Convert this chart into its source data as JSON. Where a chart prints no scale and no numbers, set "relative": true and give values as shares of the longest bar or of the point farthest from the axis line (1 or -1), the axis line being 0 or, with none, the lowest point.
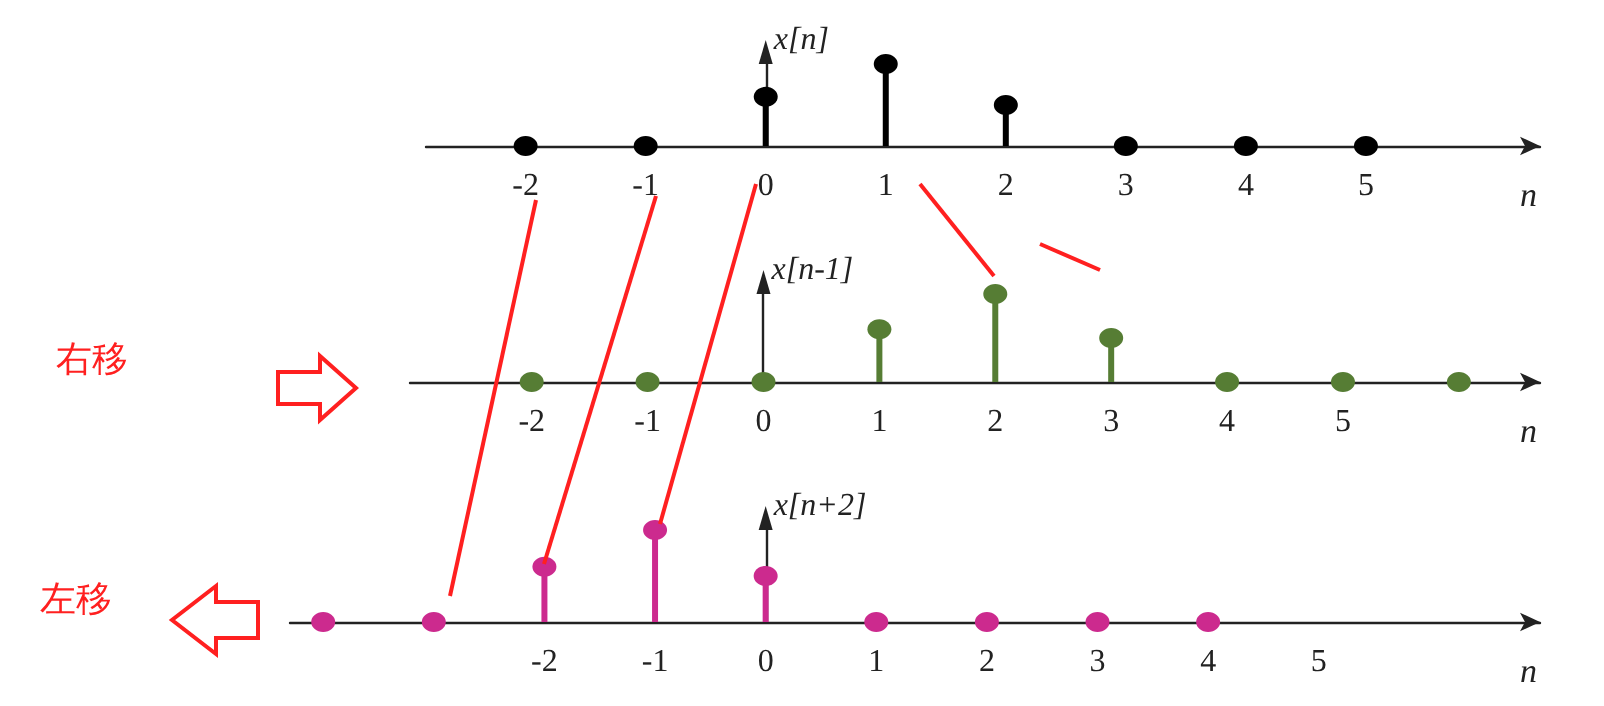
{
  "chart_data": [
    {
      "type": "lollipop",
      "relative": true,
      "color": "#000000",
      "marker": "circle",
      "ylabel": "x[n]",
      "xlabel": "n",
      "x": [
        -2,
        -1,
        0,
        1,
        2,
        3,
        4,
        5
      ],
      "values": [
        0,
        0,
        0.6,
        1,
        0.5,
        0,
        0,
        0
      ],
      "xlim": [
        -2.83,
        6.45
      ],
      "xticks": [
        -2,
        -1,
        0,
        1,
        2,
        3,
        4,
        5
      ]
    },
    {
      "type": "lollipop",
      "relative": true,
      "color": "#567d34",
      "marker": "circle",
      "ylabel": "x[n-1]",
      "xlabel": "n",
      "annotations": [
        "右移"
      ],
      "x": [
        -2,
        -1,
        0,
        1,
        2,
        3,
        4,
        5,
        6
      ],
      "values": [
        0,
        0,
        0,
        0.6,
        1,
        0.5,
        0,
        0,
        0
      ],
      "xlim": [
        -3.05,
        6.7
      ],
      "xticks": [
        -2,
        -1,
        0,
        1,
        2,
        3,
        4,
        5
      ]
    },
    {
      "type": "lollipop",
      "relative": true,
      "color": "#cc2a8e",
      "marker": "circle",
      "ylabel": "x[n+2]",
      "xlabel": "n",
      "annotations": [
        "左移"
      ],
      "x": [
        -4,
        -3,
        -2,
        -1,
        0,
        1,
        2,
        3,
        4
      ],
      "values": [
        0,
        0,
        0.6,
        1,
        0.5,
        0,
        0,
        0,
        0
      ],
      "xlim": [
        -4.3,
        7.0
      ],
      "xticks": [
        -2,
        -1,
        0,
        1,
        2,
        3,
        4,
        5
      ]
    }
  ]
}
